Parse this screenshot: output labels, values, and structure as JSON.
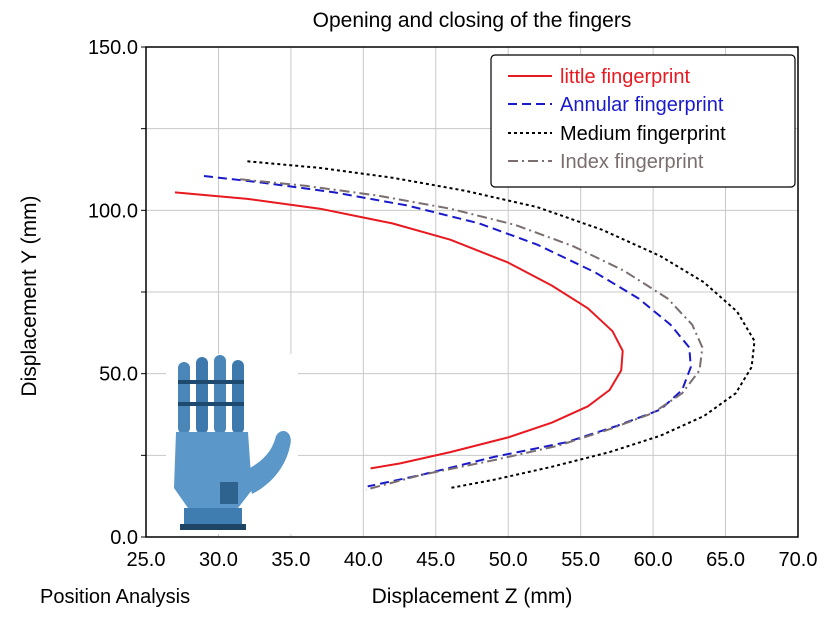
{
  "chart_data": {
    "type": "line",
    "title": "Opening and closing of the fingers",
    "xlabel": "Displacement Z (mm)",
    "ylabel": "Displacement Y (mm)",
    "footer_left": "Position Analysis",
    "xlim": [
      25,
      70
    ],
    "ylim": [
      0,
      150
    ],
    "x_ticks": [
      "25.0",
      "30.0",
      "35.0",
      "40.0",
      "45.0",
      "50.0",
      "55.0",
      "60.0",
      "65.0",
      "70.0"
    ],
    "y_ticks": [
      "0.0",
      "50.0",
      "100.0",
      "150.0"
    ],
    "grid": true,
    "legend_position": "top-right",
    "series": [
      {
        "name": "little fingerprint",
        "color": "#e8191f",
        "style": "solid",
        "points": [
          [
            27.0,
            105.5
          ],
          [
            32,
            103.5
          ],
          [
            37,
            100.5
          ],
          [
            42,
            96
          ],
          [
            46,
            91
          ],
          [
            50,
            84
          ],
          [
            53,
            77
          ],
          [
            55.5,
            70
          ],
          [
            57.2,
            63
          ],
          [
            57.9,
            57
          ],
          [
            57.8,
            51
          ],
          [
            57.0,
            45
          ],
          [
            55.5,
            40
          ],
          [
            53,
            35
          ],
          [
            50,
            30.5
          ],
          [
            46,
            26
          ],
          [
            42.5,
            22.5
          ],
          [
            40.5,
            21
          ]
        ]
      },
      {
        "name": "Annular fingerprint",
        "color": "#1a1acc",
        "style": "dashed",
        "points": [
          [
            29.0,
            110.5
          ],
          [
            33,
            108.5
          ],
          [
            38,
            105.5
          ],
          [
            43,
            101.5
          ],
          [
            48,
            96
          ],
          [
            52,
            89.5
          ],
          [
            56,
            81
          ],
          [
            59,
            73
          ],
          [
            61.2,
            65
          ],
          [
            62.5,
            58
          ],
          [
            62.6,
            52
          ],
          [
            62,
            45
          ],
          [
            60.5,
            39
          ],
          [
            57.5,
            34
          ],
          [
            54,
            29
          ],
          [
            49,
            24.5
          ],
          [
            44,
            19
          ],
          [
            40.3,
            15.5
          ]
        ]
      },
      {
        "name": "Medium fingerprint",
        "color": "#000000",
        "style": "dotted",
        "points": [
          [
            32.0,
            115
          ],
          [
            37,
            113
          ],
          [
            42,
            110
          ],
          [
            47,
            106
          ],
          [
            52,
            101
          ],
          [
            56.5,
            94
          ],
          [
            60.5,
            86
          ],
          [
            63.5,
            78
          ],
          [
            65.8,
            69
          ],
          [
            67.0,
            60
          ],
          [
            66.8,
            52
          ],
          [
            65.7,
            44
          ],
          [
            63.5,
            37
          ],
          [
            60.5,
            31
          ],
          [
            57,
            26
          ],
          [
            53,
            21.5
          ],
          [
            49,
            17.5
          ],
          [
            46.0,
            15
          ]
        ]
      },
      {
        "name": "Index fingerprint",
        "color": "#7a6e6e",
        "style": "dashdot",
        "points": [
          [
            31.5,
            109.5
          ],
          [
            36,
            107.5
          ],
          [
            41,
            104.5
          ],
          [
            46,
            100.5
          ],
          [
            50.5,
            95.5
          ],
          [
            54.5,
            89
          ],
          [
            58,
            81.5
          ],
          [
            61,
            73
          ],
          [
            62.7,
            65
          ],
          [
            63.4,
            58
          ],
          [
            63.2,
            51
          ],
          [
            62,
            44
          ],
          [
            60,
            38
          ],
          [
            57,
            33
          ],
          [
            53.5,
            28
          ],
          [
            49,
            23.5
          ],
          [
            44,
            19
          ],
          [
            40.2,
            14.5
          ]
        ]
      }
    ]
  }
}
